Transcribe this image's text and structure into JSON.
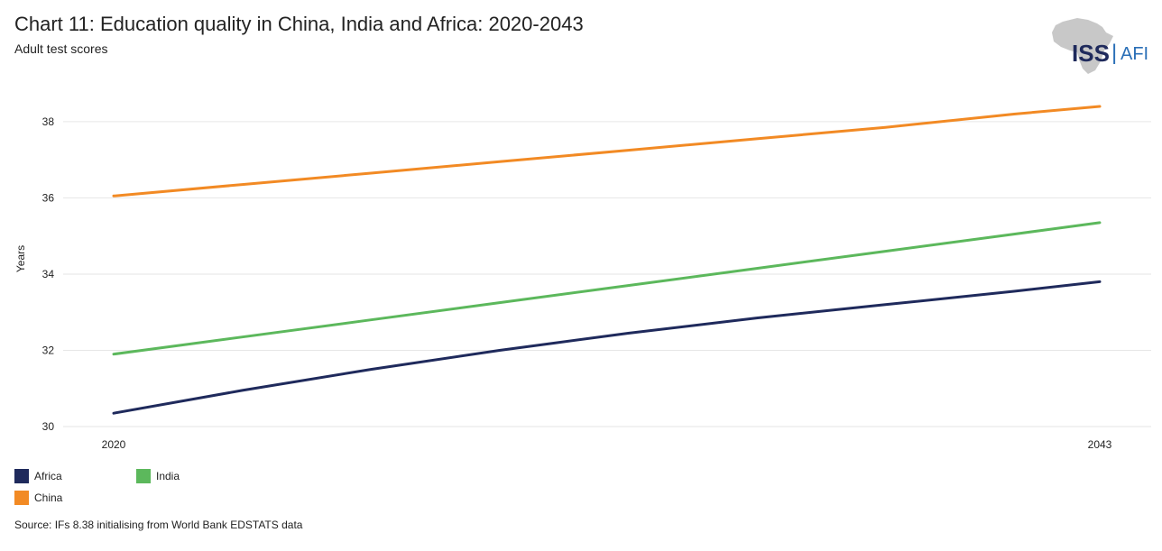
{
  "header": {
    "title": "Chart 11: Education quality in China, India and Africa: 2020-2043",
    "subtitle": "Adult test scores"
  },
  "logo": {
    "text_primary": "ISS",
    "text_secondary": "AFI",
    "separator": "|",
    "primary_color": "#1f2a5c",
    "secondary_color": "#2a6fb7",
    "map_color": "#c8c8c8"
  },
  "chart_data": {
    "type": "line",
    "title": "Chart 11: Education quality in China, India and Africa: 2020-2043",
    "subtitle": "Adult test scores",
    "xlabel": "",
    "ylabel": "Years",
    "x": [
      2020,
      2043
    ],
    "x_tick_labels": [
      "2020",
      "2043"
    ],
    "ylim": [
      30,
      38.4
    ],
    "y_ticks": [
      30,
      32,
      34,
      36,
      38
    ],
    "y_tick_labels": [
      "30",
      "32",
      "34",
      "36",
      "38"
    ],
    "grid": true,
    "legend_position": "bottom-left",
    "series": [
      {
        "name": "Africa",
        "color": "#1f2a5c",
        "x": [
          2020,
          2023,
          2026,
          2029,
          2032,
          2035,
          2038,
          2041,
          2043
        ],
        "values": [
          30.35,
          30.95,
          31.5,
          32.0,
          32.45,
          32.85,
          33.2,
          33.55,
          33.8
        ]
      },
      {
        "name": "India",
        "color": "#5cb85c",
        "x": [
          2020,
          2023,
          2026,
          2029,
          2032,
          2035,
          2038,
          2041,
          2043
        ],
        "values": [
          31.9,
          32.35,
          32.8,
          33.25,
          33.7,
          34.15,
          34.6,
          35.05,
          35.35
        ]
      },
      {
        "name": "China",
        "color": "#f28a24",
        "x": [
          2020,
          2023,
          2026,
          2029,
          2032,
          2035,
          2038,
          2041,
          2043
        ],
        "values": [
          36.05,
          36.35,
          36.65,
          36.95,
          37.25,
          37.55,
          37.85,
          38.2,
          38.4
        ]
      }
    ]
  },
  "source": "Source: IFs 8.38 initialising from World Bank EDSTATS data"
}
